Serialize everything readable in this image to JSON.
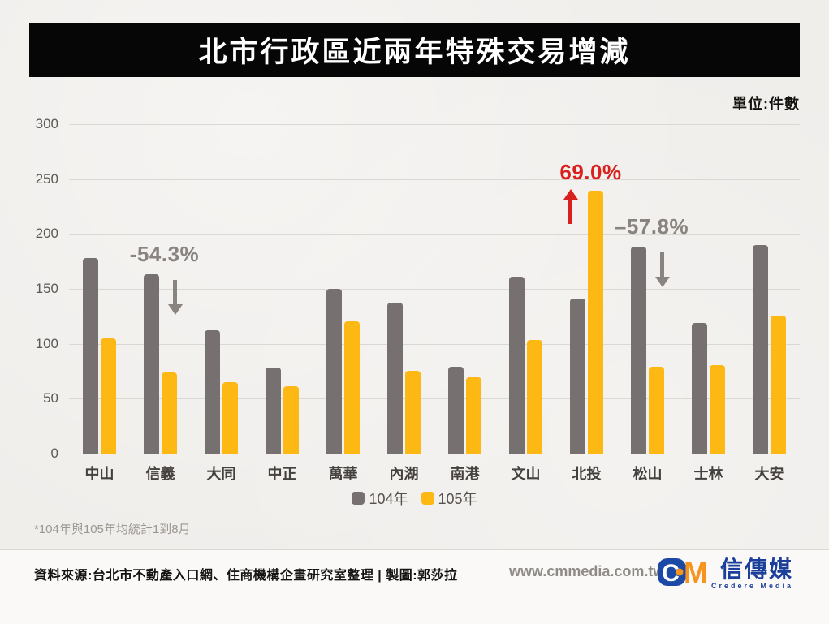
{
  "title": "北市行政區近兩年特殊交易增減",
  "unit_label": "單位:件數",
  "chart_data": {
    "type": "bar",
    "categories": [
      "中山",
      "信義",
      "大同",
      "中正",
      "萬華",
      "內湖",
      "南港",
      "文山",
      "北投",
      "松山",
      "士林",
      "大安"
    ],
    "series": [
      {
        "name": "104年",
        "color": "#767170",
        "values": [
          179,
          164,
          113,
          79,
          151,
          138,
          80,
          162,
          142,
          189,
          120,
          191
        ]
      },
      {
        "name": "105年",
        "color": "#FDB813",
        "values": [
          106,
          75,
          66,
          62,
          121,
          76,
          70,
          104,
          240,
          80,
          81,
          126
        ]
      }
    ],
    "ylim": [
      0,
      300
    ],
    "yticks": [
      0,
      50,
      100,
      150,
      200,
      250,
      300
    ],
    "grid": true,
    "legend_position": "bottom-center",
    "annotations": [
      {
        "text": "-54.3%",
        "category": "信義",
        "direction": "down",
        "color": "#8A8480"
      },
      {
        "text": "69.0%",
        "category": "北投",
        "direction": "up",
        "color": "#D8201D"
      },
      {
        "text": "–57.8%",
        "category": "松山",
        "direction": "down",
        "color": "#8A8480"
      }
    ]
  },
  "footnote": "*104年與105年均統計1到8月",
  "footer": {
    "source": "資料來源:台北市不動產入口網、住商機構企畫研究室整理 | 製圖:郭莎拉",
    "website": "www.cmmedia.com.tw",
    "logo": {
      "mark_c": "C",
      "mark_m": "M",
      "brand_name": "信傳媒",
      "brand_subtitle": "Credere Media"
    }
  },
  "colors": {
    "background": "#F0EEEB",
    "banner": "#060606",
    "banner_text": "#FFFFFF",
    "bar_104": "#767170",
    "bar_105": "#FDB813",
    "annotation_up": "#D8201D",
    "annotation_down": "#8A8480",
    "logo_blue": "#1B3F9B",
    "logo_orange": "#F7941E"
  }
}
